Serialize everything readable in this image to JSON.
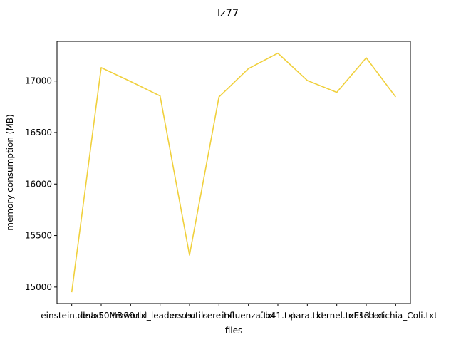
{
  "chart_data": {
    "type": "line",
    "title": "lz77",
    "xlabel": "files",
    "ylabel": "memory consumption (MB)",
    "categories": [
      "einstein.de.txt",
      "dna.50MB",
      "tm29.txt",
      "world_leaders.txt",
      "coreutils",
      "cere.txt",
      "influenza.txt",
      "fib41.txt",
      "para.txt",
      "kernel.txt",
      "rs.13.txt",
      "Escherichia_Coli.txt"
    ],
    "series": [
      {
        "values": [
          14950,
          17130,
          16995,
          16855,
          15310,
          16845,
          17120,
          17270,
          17005,
          16890,
          17225,
          16845
        ]
      }
    ],
    "ylim": [
      14840,
      17385
    ],
    "yticks": [
      15000,
      15500,
      16000,
      16500,
      17000
    ],
    "ytick_labels": [
      "15000",
      "15500",
      "16000",
      "16500",
      "17000"
    ],
    "grid": false,
    "line_color": "#f0d03c"
  }
}
